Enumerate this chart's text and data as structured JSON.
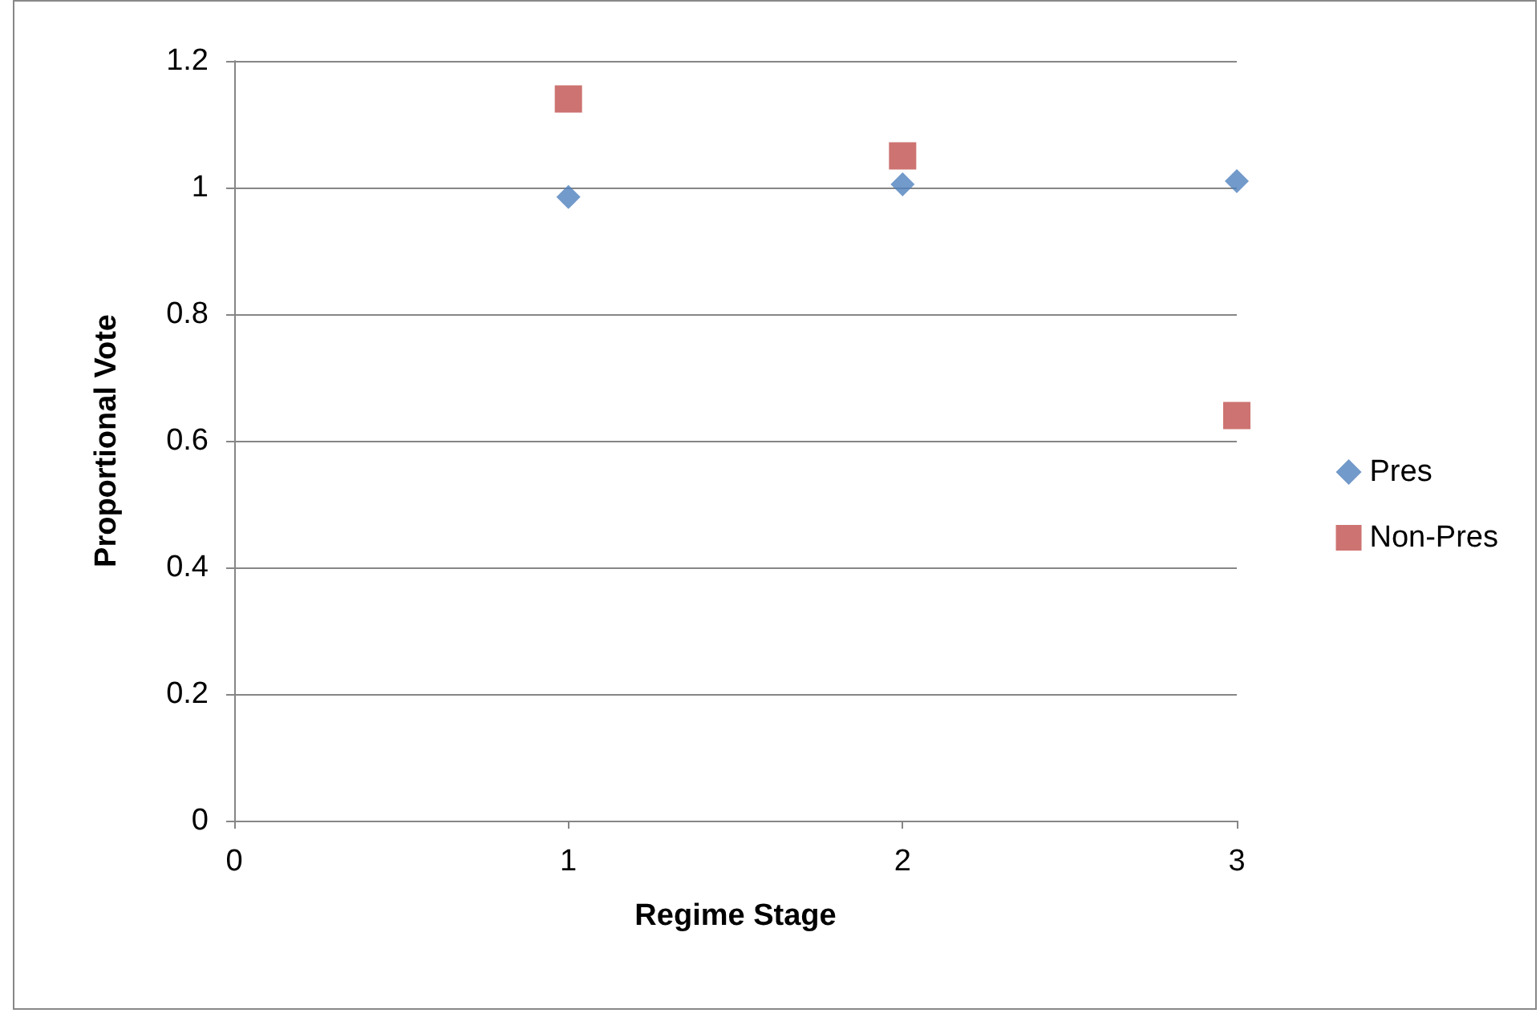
{
  "chart_data": {
    "type": "scatter",
    "xlabel": "Regime Stage",
    "ylabel": "Proportional Vote",
    "x": [
      1,
      2,
      3
    ],
    "series": [
      {
        "name": "Pres",
        "color": "#4f81bd",
        "marker": "diamond",
        "values": [
          0.985,
          1.005,
          1.01
        ]
      },
      {
        "name": "Non-Pres",
        "color": "#c0504d",
        "marker": "square",
        "values": [
          1.14,
          1.05,
          0.64
        ]
      }
    ],
    "xlim": [
      0,
      3
    ],
    "xticks": [
      0,
      1,
      2,
      3
    ],
    "ylim": [
      0,
      1.2
    ],
    "yticks": [
      0,
      0.2,
      0.4,
      0.6,
      0.8,
      1,
      1.2
    ],
    "grid": "y",
    "legend": "right"
  }
}
